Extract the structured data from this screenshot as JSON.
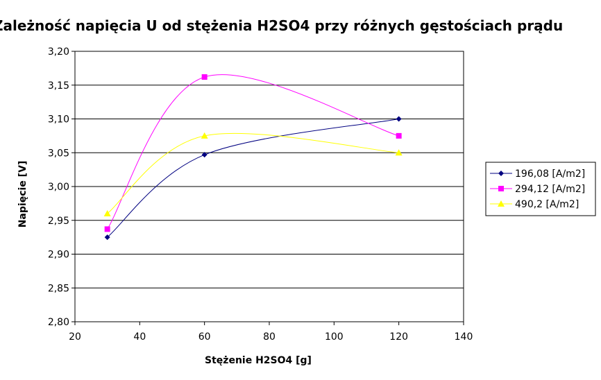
{
  "chart_data": {
    "type": "scatter",
    "title": "Zależność napięcia U od stężenia H2SO4 przy różnych gęstościach prądu",
    "xlabel": "Stężenie H2SO4 [g]",
    "ylabel": "Napięcie [V]",
    "xlim": [
      20,
      140
    ],
    "ylim": [
      2.8,
      3.2
    ],
    "x_ticks": [
      "20",
      "40",
      "60",
      "80",
      "100",
      "120",
      "140"
    ],
    "y_ticks": [
      "2,80",
      "2,85",
      "2,90",
      "2,95",
      "3,00",
      "3,05",
      "3,10",
      "3,15",
      "3,20"
    ],
    "grid": "horizontal",
    "legend_position": "right",
    "smoothed_lines": true,
    "series": [
      {
        "name": "196,08 [A/m2]",
        "color": "#000080",
        "marker": "diamond",
        "x": [
          30,
          60,
          120
        ],
        "y": [
          2.925,
          3.047,
          3.1
        ]
      },
      {
        "name": "294,12 [A/m2]",
        "color": "#ff00ff",
        "marker": "square",
        "x": [
          30,
          60,
          120
        ],
        "y": [
          2.937,
          3.162,
          3.075
        ]
      },
      {
        "name": "490,2 [A/m2]",
        "color": "#ffff00",
        "marker": "triangle",
        "x": [
          30,
          60,
          120
        ],
        "y": [
          2.96,
          3.075,
          3.05
        ]
      }
    ]
  }
}
